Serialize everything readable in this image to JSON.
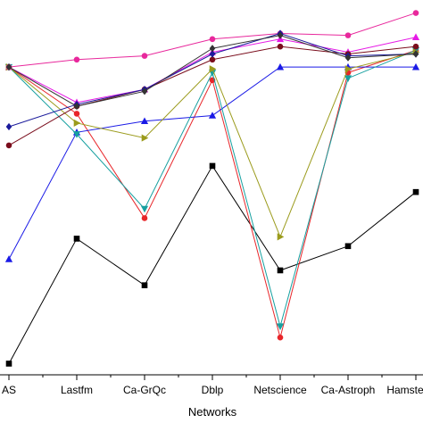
{
  "chart_data": {
    "type": "line",
    "title": "",
    "xlabel": "Networks",
    "ylabel": "",
    "categories": [
      "AS",
      "Lastfm",
      "Ca-GrQc",
      "Dblp",
      "Netscience",
      "Ca-Astroph",
      "Hamsterster"
    ],
    "ylim": [
      0,
      100
    ],
    "grid": false,
    "series": [
      {
        "color": "#000000",
        "marker": "square",
        "values": [
          3,
          36.5,
          24,
          56,
          28,
          34.5,
          49
        ]
      },
      {
        "color": "#e8262a",
        "marker": "circle",
        "values": [
          82.5,
          70,
          42,
          79,
          10,
          81,
          87
        ]
      },
      {
        "color": "#1a1ae6",
        "marker": "triangle-up",
        "values": [
          31,
          65,
          68,
          69.5,
          82.5,
          82.5,
          82.5
        ]
      },
      {
        "color": "#17a0a0",
        "marker": "triangle-down",
        "values": [
          82.5,
          64.5,
          44.5,
          81,
          13,
          79.5,
          87
        ]
      },
      {
        "color": "#e61ae6",
        "marker": "triangle-up",
        "values": [
          82.5,
          73,
          76.5,
          86.5,
          90,
          86.5,
          90.5
        ]
      },
      {
        "color": "#9b9b1c",
        "marker": "triangle-right",
        "values": [
          82.5,
          67.5,
          63.5,
          82,
          37,
          82,
          86.5
        ]
      },
      {
        "color": "#7a0d1c",
        "marker": "circle",
        "values": [
          61.5,
          72,
          76.5,
          84.5,
          88,
          86,
          88
        ]
      },
      {
        "color": "#e8289c",
        "marker": "circle",
        "values": [
          82.5,
          84.5,
          85.5,
          90,
          91.5,
          91,
          97
        ]
      },
      {
        "color": "#1a1a9b",
        "marker": "diamond",
        "values": [
          66.5,
          72.5,
          76.5,
          86,
          91.5,
          85.5,
          86
        ]
      },
      {
        "color": "#333333",
        "marker": "diamond",
        "values": [
          82.5,
          72,
          76,
          87.5,
          91,
          85,
          86
        ]
      }
    ]
  }
}
